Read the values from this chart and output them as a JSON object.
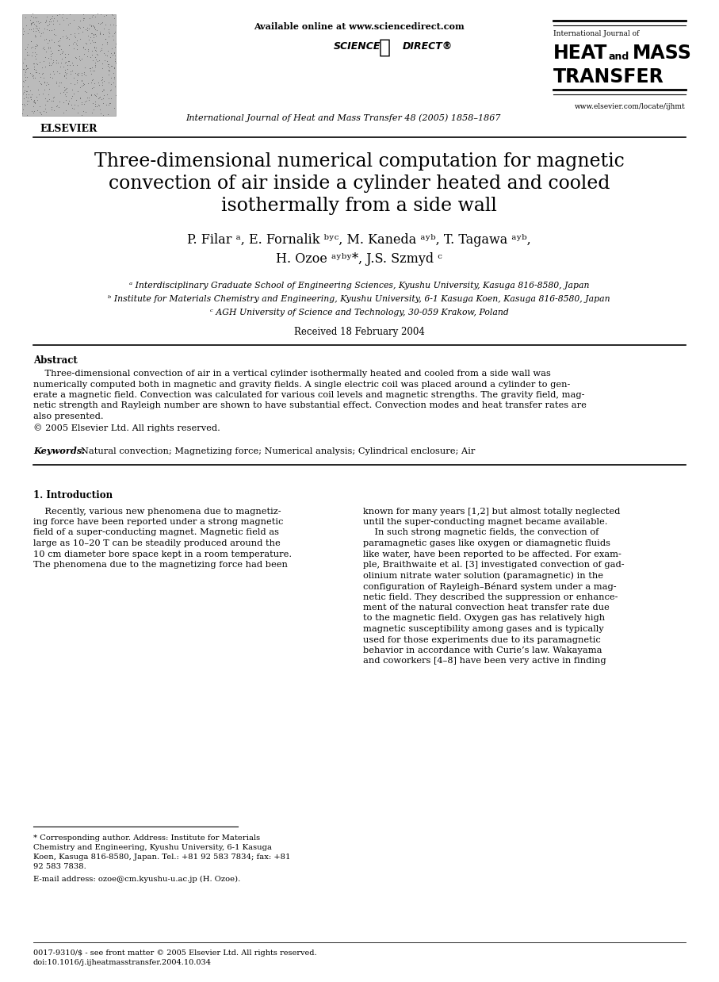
{
  "bg_color": "#ffffff",
  "page_width": 9.07,
  "page_height": 12.38,
  "header_available": "Available online at www.sciencedirect.com",
  "header_journal_info": "International Journal of Heat and Mass Transfer 48 (2005) 1858–1867",
  "header_website": "www.elsevier.com/locate/ijhmt",
  "journal_small": "International Journal of",
  "journal_heat": "HEAT",
  "journal_and": "and",
  "journal_mass": "MASS",
  "journal_transfer": "TRANSFER",
  "title_line1": "Three-dimensional numerical computation for magnetic",
  "title_line2": "convection of air inside a cylinder heated and cooled",
  "title_line3": "isothermally from a side wall",
  "authors_line1": "P. Filar a, E. Fornalik b,c, M. Kaneda a,b, T. Tagawa a,b,",
  "authors_line2": "H. Ozoe a,b,*, J.S. Szmyd c",
  "aff_a": "a Interdisciplinary Graduate School of Engineering Sciences, Kyushu University, Kasuga 816-8580, Japan",
  "aff_b": "b Institute for Materials Chemistry and Engineering, Kyushu University, 6-1 Kasuga Koen, Kasuga 816-8580, Japan",
  "aff_c": "c AGH University of Science and Technology, 30-059 Krakow, Poland",
  "received": "Received 18 February 2004",
  "abstract_label": "Abstract",
  "copyright": "© 2005 Elsevier Ltd. All rights reserved.",
  "keywords_label": "Keywords:",
  "keywords_text": "Natural convection; Magnetizing force; Numerical analysis; Cylindrical enclosure; Air",
  "intro_label": "1. Introduction",
  "footnote1": "* Corresponding author. Address: Institute for Materials",
  "footnote2": "Chemistry and Engineering, Kyushu University, 6-1 Kasuga",
  "footnote3": "Koen, Kasuga 816-8580, Japan. Tel.: +81 92 583 7834; fax: +81",
  "footnote4": "92 583 7838.",
  "footnote_email": "E-mail address: ozoe@cm.kyushu-u.ac.jp (H. Ozoe).",
  "footer1": "0017-9310/$ - see front matter © 2005 Elsevier Ltd. All rights reserved.",
  "footer2": "doi:10.1016/j.ijheatmasstransfer.2004.10.034"
}
